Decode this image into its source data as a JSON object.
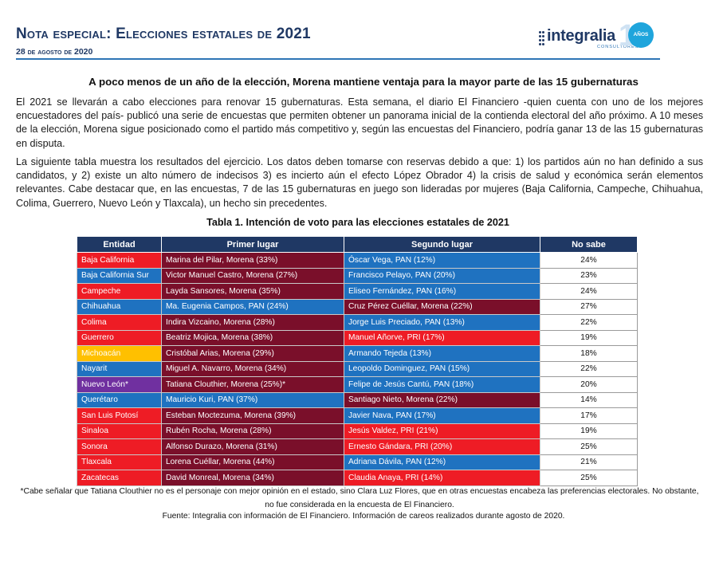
{
  "header": {
    "title_prefix": "Nota especial: Elecciones estatales de ",
    "title_year": "2021",
    "date": "28 de agosto de 2020"
  },
  "logo": {
    "name": "integralia",
    "tagline": "CONSULTORES",
    "anniversary_number": "1",
    "anniversary_label": "AÑOS"
  },
  "subtitle": "A poco menos de un año de la elección, Morena mantiene ventaja para la mayor parte de las 15 gubernaturas",
  "paragraphs": [
    "El 2021 se llevarán a cabo elecciones para renovar 15 gubernaturas. Esta semana, el diario El Financiero -quien cuenta con uno de los mejores encuestadores del país- publicó una serie de encuestas que permiten obtener un panorama inicial de la contienda electoral del año próximo. A 10 meses de la elección, Morena sigue posicionado como el partido más competitivo y, según las encuestas del Financiero, podría ganar 13 de las 15 gubernaturas en disputa.",
    "La siguiente tabla muestra los resultados del ejercicio. Los datos deben tomarse con reservas debido a que: 1) los partidos aún no han definido a sus candidatos, y 2) existe un alto número de indecisos 3) es incierto aún el efecto López Obrador 4) la crisis de salud y económica serán elementos relevantes. Cabe destacar que, en las encuestas, 7 de las 15 gubernaturas en juego son lideradas por mujeres (Baja California, Campeche, Chihuahua, Colima, Guerrero, Nuevo León y Tlaxcala), un hecho sin precedentes."
  ],
  "table": {
    "title": "Tabla 1. Intención de voto para las elecciones estatales de 2021",
    "headers": [
      "Entidad",
      "Primer lugar",
      "Segundo lugar",
      "No sabe"
    ],
    "colors": {
      "header": "#1f3864",
      "morena": "#7a0f2a",
      "pan": "#1f72c0",
      "pri": "#ee1c25",
      "entidad_morena": "#ee1c25",
      "entidad_pan": "#1f72c0",
      "entidad_prd": "#ffc000",
      "entidad_mc": "#7030a0"
    },
    "rows": [
      {
        "entidad": "Baja California",
        "entidad_party": "morena",
        "primer": "Marina del Pilar, Morena (33%)",
        "primer_party": "morena",
        "segundo": "Óscar Vega, PAN (12%)",
        "segundo_party": "pan",
        "no_sabe": "24%"
      },
      {
        "entidad": "Baja California Sur",
        "entidad_party": "pan",
        "primer": "Victor Manuel Castro, Morena (27%)",
        "primer_party": "morena",
        "segundo": "Francisco Pelayo, PAN (20%)",
        "segundo_party": "pan",
        "no_sabe": "23%"
      },
      {
        "entidad": "Campeche",
        "entidad_party": "pri",
        "primer": "Layda Sansores, Morena (35%)",
        "primer_party": "morena",
        "segundo": "Eliseo Fernández, PAN (16%)",
        "segundo_party": "pan",
        "no_sabe": "24%"
      },
      {
        "entidad": "Chihuahua",
        "entidad_party": "pan",
        "primer": "Ma. Eugenia Campos, PAN (24%)",
        "primer_party": "pan",
        "segundo": "Cruz Pérez Cuéllar, Morena (22%)",
        "segundo_party": "morena",
        "no_sabe": "27%"
      },
      {
        "entidad": "Colima",
        "entidad_party": "pri",
        "primer": "Indira Vizcaino, Morena (28%)",
        "primer_party": "morena",
        "segundo": "Jorge Luis Preciado, PAN (13%)",
        "segundo_party": "pan",
        "no_sabe": "22%"
      },
      {
        "entidad": "Guerrero",
        "entidad_party": "pri",
        "primer": "Beatriz Mojica, Morena (38%)",
        "primer_party": "morena",
        "segundo": "Manuel Añorve, PRI (17%)",
        "segundo_party": "pri",
        "no_sabe": "19%"
      },
      {
        "entidad": "Michoacán",
        "entidad_party": "prd",
        "primer": "Cristóbal Arias, Morena (29%)",
        "primer_party": "morena",
        "segundo": "Armando Tejeda (13%)",
        "segundo_party": "pan",
        "no_sabe": "18%"
      },
      {
        "entidad": "Nayarit",
        "entidad_party": "pan",
        "primer": "Miguel A. Navarro, Morena (34%)",
        "primer_party": "morena",
        "segundo": "Leopoldo Dominguez, PAN (15%)",
        "segundo_party": "pan",
        "no_sabe": "22%"
      },
      {
        "entidad": "Nuevo León*",
        "entidad_party": "mc",
        "primer": "Tatiana Clouthier, Morena (25%)*",
        "primer_party": "morena",
        "segundo": "Felipe de Jesús Cantú, PAN (18%)",
        "segundo_party": "pan",
        "no_sabe": "20%"
      },
      {
        "entidad": "Querétaro",
        "entidad_party": "pan",
        "primer": "Mauricio Kuri, PAN (37%)",
        "primer_party": "pan",
        "segundo": "Santiago Nieto, Morena (22%)",
        "segundo_party": "morena",
        "no_sabe": "14%"
      },
      {
        "entidad": "San Luis Potosí",
        "entidad_party": "pri",
        "primer": "Esteban Moctezuma, Morena (39%)",
        "primer_party": "morena",
        "segundo": "Javier Nava, PAN (17%)",
        "segundo_party": "pan",
        "no_sabe": "17%"
      },
      {
        "entidad": "Sinaloa",
        "entidad_party": "pri",
        "primer": "Rubén Rocha, Morena (28%)",
        "primer_party": "morena",
        "segundo": "Jesús Valdez, PRI (21%)",
        "segundo_party": "pri",
        "no_sabe": "19%"
      },
      {
        "entidad": "Sonora",
        "entidad_party": "pri",
        "primer": "Alfonso Durazo, Morena (31%)",
        "primer_party": "morena",
        "segundo": "Ernesto Gándara, PRI (20%)",
        "segundo_party": "pri",
        "no_sabe": "25%"
      },
      {
        "entidad": "Tlaxcala",
        "entidad_party": "pri",
        "primer": "Lorena Cuéllar, Morena (44%)",
        "primer_party": "morena",
        "segundo": "Adriana Dávila, PAN (12%)",
        "segundo_party": "pan",
        "no_sabe": "21%"
      },
      {
        "entidad": "Zacatecas",
        "entidad_party": "pri",
        "primer": "David Monreal, Morena (34%)",
        "primer_party": "morena",
        "segundo": "Claudia Anaya, PRI (14%)",
        "segundo_party": "pri",
        "no_sabe": "25%"
      }
    ]
  },
  "footnote": "*Cabe señalar que Tatiana Clouthier no es el personaje con mejor opinión en el estado, sino Clara Luz Flores, que en otras encuestas encabeza las preferencias electorales. No obstante, no fue considerada en la encuesta de El Financiero.",
  "source": "Fuente: Integralia con información de El Financiero. Información de careos realizados durante agosto de 2020."
}
